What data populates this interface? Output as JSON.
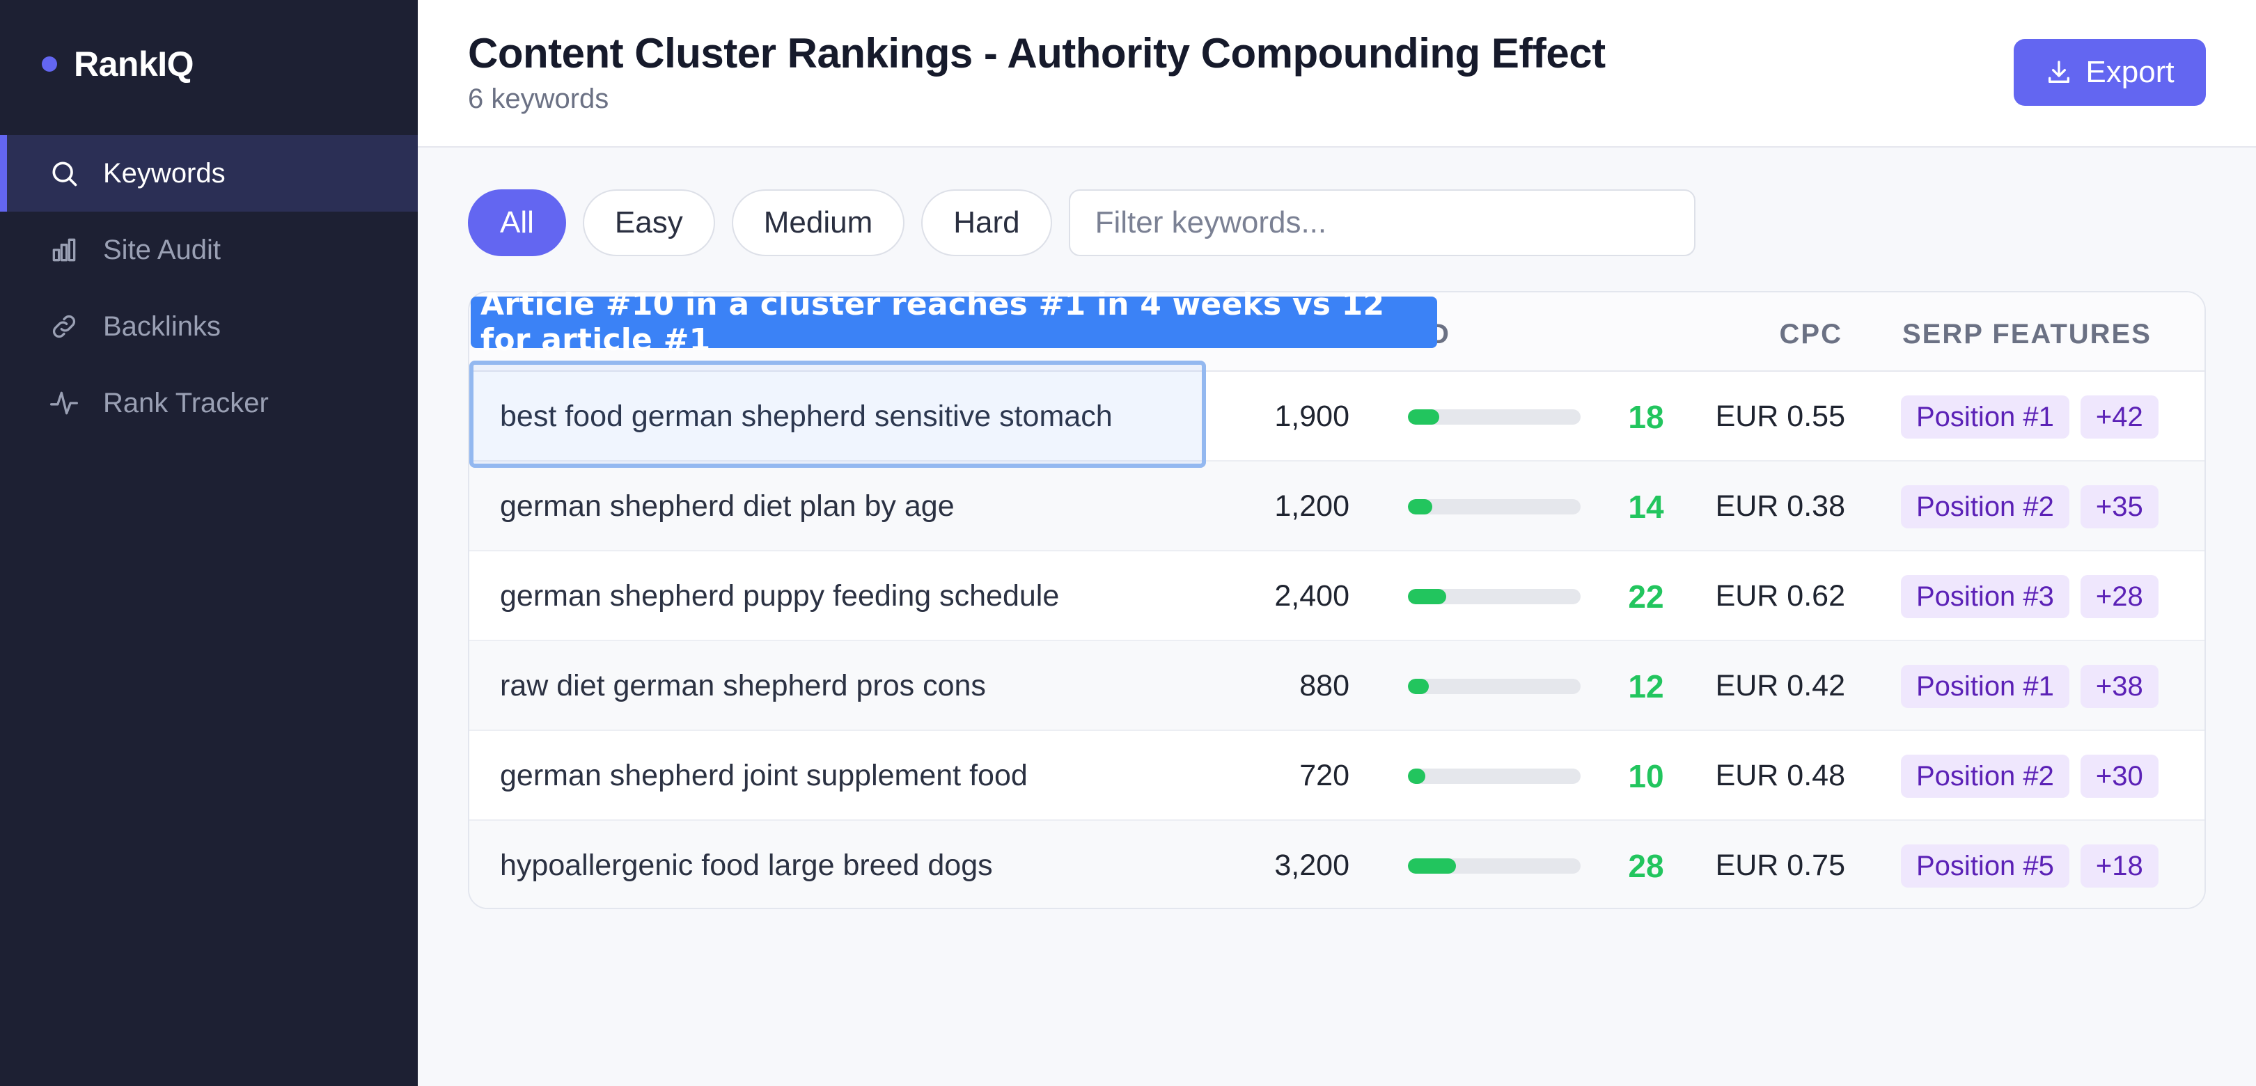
{
  "app": {
    "name": "RankIQ"
  },
  "sidebar": {
    "items": [
      {
        "label": "Keywords",
        "icon": "search-icon",
        "active": true
      },
      {
        "label": "Site Audit",
        "icon": "bar-chart-icon",
        "active": false
      },
      {
        "label": "Backlinks",
        "icon": "link-icon",
        "active": false
      },
      {
        "label": "Rank Tracker",
        "icon": "activity-icon",
        "active": false
      }
    ]
  },
  "header": {
    "title": "Content Cluster Rankings - Authority Compounding Effect",
    "subtitle": "6 keywords",
    "export_label": "Export"
  },
  "filters": {
    "chips": [
      {
        "label": "All",
        "active": true
      },
      {
        "label": "Easy",
        "active": false
      },
      {
        "label": "Medium",
        "active": false
      },
      {
        "label": "Hard",
        "active": false
      }
    ],
    "search_placeholder": "Filter keywords..."
  },
  "table": {
    "columns": {
      "kd": "D",
      "cpc": "CPC",
      "serp": "SERP FEATURES"
    },
    "rows": [
      {
        "keyword": "best food german shepherd sensitive stomach",
        "volume": "1,900",
        "kd": "18",
        "kd_value": 18,
        "cpc": "EUR 0.55",
        "position": "Position #1",
        "change": "+42"
      },
      {
        "keyword": "german shepherd diet plan by age",
        "volume": "1,200",
        "kd": "14",
        "kd_value": 14,
        "cpc": "EUR 0.38",
        "position": "Position #2",
        "change": "+35"
      },
      {
        "keyword": "german shepherd puppy feeding schedule",
        "volume": "2,400",
        "kd": "22",
        "kd_value": 22,
        "cpc": "EUR 0.62",
        "position": "Position #3",
        "change": "+28"
      },
      {
        "keyword": "raw diet german shepherd pros cons",
        "volume": "880",
        "kd": "12",
        "kd_value": 12,
        "cpc": "EUR 0.42",
        "position": "Position #1",
        "change": "+38"
      },
      {
        "keyword": "german shepherd joint supplement food",
        "volume": "720",
        "kd": "10",
        "kd_value": 10,
        "cpc": "EUR 0.48",
        "position": "Position #2",
        "change": "+30"
      },
      {
        "keyword": "hypoallergenic food large breed dogs",
        "volume": "3,200",
        "kd": "28",
        "kd_value": 28,
        "cpc": "EUR 0.75",
        "position": "Position #5",
        "change": "+18"
      }
    ]
  },
  "annotation": {
    "text": "Article #10 in a cluster reaches #1 in 4 weeks vs 12 for article #1"
  },
  "colors": {
    "accent": "#6366f1",
    "sidebar_bg": "#1d2033",
    "kd_green": "#22c55e",
    "tag_bg": "#efe7fd",
    "tag_text": "#5b21b6",
    "annotation": "#3b82f6"
  }
}
